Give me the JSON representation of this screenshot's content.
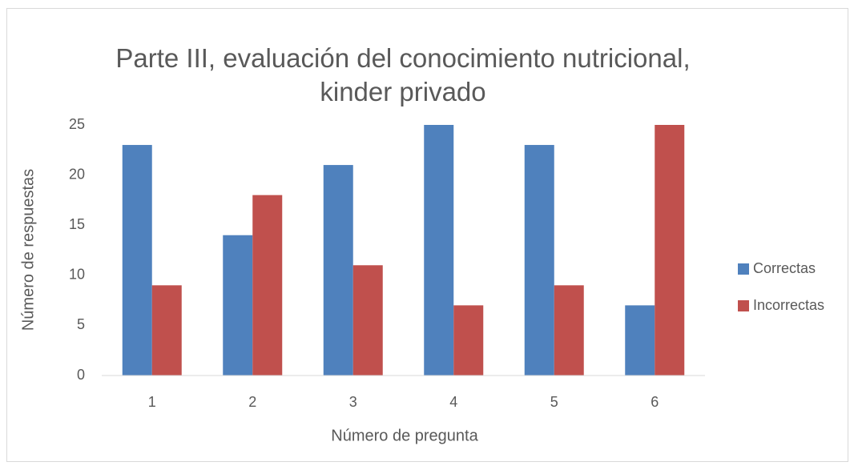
{
  "chart_data": {
    "type": "bar",
    "title": "Parte III, evaluación del conocimiento nutricional, kinder privado",
    "x_label": "Número de pregunta",
    "y_label": "Número de respuestas",
    "categories": [
      "1",
      "2",
      "3",
      "4",
      "5",
      "6"
    ],
    "series": [
      {
        "name": "Correctas",
        "color": "#4f81bd",
        "values": [
          23,
          14,
          21,
          25,
          23,
          7
        ]
      },
      {
        "name": "Incorrectas",
        "color": "#c0504d",
        "values": [
          9,
          18,
          11,
          7,
          9,
          25
        ]
      }
    ],
    "ylim": [
      0,
      25
    ],
    "yticks": [
      0,
      5,
      10,
      15,
      20,
      25
    ],
    "grid": false,
    "legend": "right"
  }
}
